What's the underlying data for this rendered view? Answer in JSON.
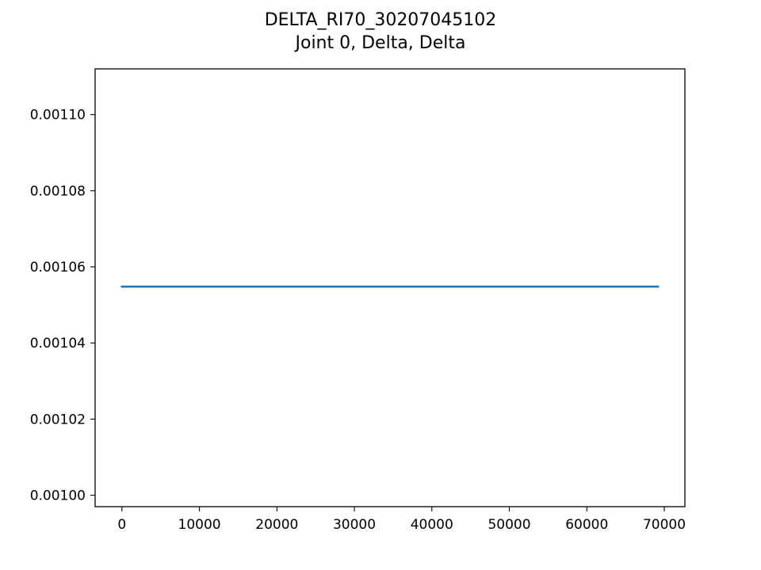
{
  "chart_data": {
    "type": "line",
    "title": "DELTA_RI70_30207045102",
    "subtitle": "Joint 0, Delta, Delta",
    "xlabel": "",
    "ylabel": "",
    "xlim": [
      -3460,
      72660
    ],
    "ylim": [
      0.000997,
      0.001112
    ],
    "x_ticks": [
      0,
      10000,
      20000,
      30000,
      40000,
      50000,
      60000,
      70000
    ],
    "x_tick_labels": [
      "0",
      "10000",
      "20000",
      "30000",
      "40000",
      "50000",
      "60000",
      "70000"
    ],
    "y_ticks": [
      0.001,
      0.00102,
      0.00104,
      0.00106,
      0.00108,
      0.0011
    ],
    "y_tick_labels": [
      "0.00100",
      "0.00102",
      "0.00104",
      "0.00106",
      "0.00108",
      "0.00110"
    ],
    "grid": false,
    "legend": "none",
    "series": [
      {
        "color": "#1f77b4",
        "x": [
          0,
          69200
        ],
        "y": [
          0.0010548,
          0.0010548
        ]
      }
    ]
  }
}
